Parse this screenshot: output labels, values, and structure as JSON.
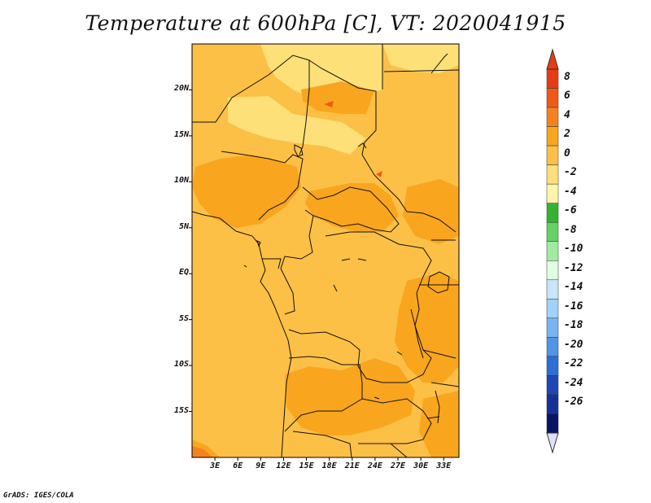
{
  "title": "Temperature at 600hPa [C], VT: 2020041915",
  "credit": "GrADS: IGES/COLA",
  "map": {
    "lat_ticks": [
      "20N",
      "15N",
      "10N",
      "5N",
      "EQ",
      "5S",
      "10S",
      "15S"
    ],
    "lat_values": [
      20,
      15,
      10,
      5,
      0,
      -5,
      -10,
      -15
    ],
    "lon_ticks": [
      "3E",
      "6E",
      "9E",
      "12E",
      "15E",
      "18E",
      "21E",
      "24E",
      "27E",
      "30E",
      "33E"
    ],
    "lon_values": [
      3,
      6,
      9,
      12,
      15,
      18,
      21,
      24,
      27,
      30,
      33
    ],
    "lon_range": [
      0,
      35
    ],
    "lat_range": [
      -20,
      25
    ]
  },
  "colorbar": {
    "labels": [
      "8",
      "6",
      "4",
      "2",
      "0",
      "-2",
      "-4",
      "-6",
      "-8",
      "-10",
      "-12",
      "-14",
      "-16",
      "-18",
      "-20",
      "-22",
      "-24",
      "-26"
    ],
    "colors": [
      "#e63c14",
      "#f05a14",
      "#f5821e",
      "#faa51e",
      "#fcc046",
      "#fde078",
      "#fff5aa",
      "#32b432",
      "#64d264",
      "#a0eba0",
      "#e1ffe1",
      "#c8e6fa",
      "#a0d2fa",
      "#78b4f0",
      "#5096e6",
      "#2d6ed7",
      "#1e46b4",
      "#143296",
      "#0a1464"
    ],
    "top_arrow_color": "#e63c14",
    "bottom_arrow_color": "#e1e1ff"
  }
}
